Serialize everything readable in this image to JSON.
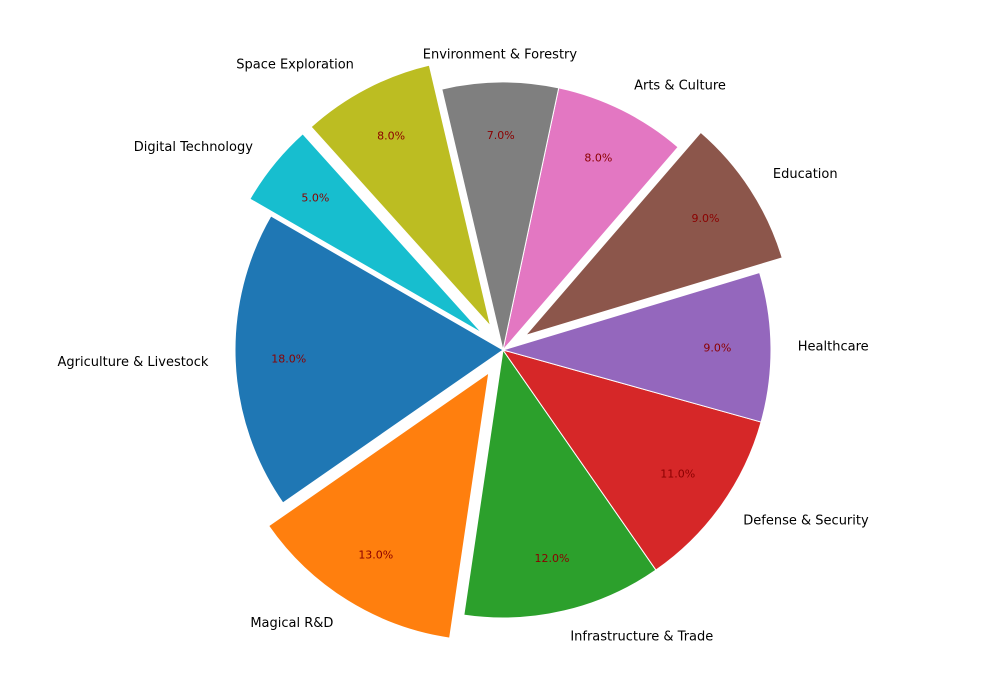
{
  "chart_data": {
    "type": "pie",
    "title": "",
    "start_angle_deg": 150,
    "direction": "counterclockwise",
    "slices": [
      {
        "label": "Agriculture & Livestock",
        "value": 18,
        "pct_label": "18.0%",
        "color": "#1f77b4",
        "exploded": false
      },
      {
        "label": "Magical R&D",
        "value": 13,
        "pct_label": "13.0%",
        "color": "#ff7f0e",
        "exploded": true
      },
      {
        "label": "Infrastructure & Trade",
        "value": 12,
        "pct_label": "12.0%",
        "color": "#2ca02c",
        "exploded": false
      },
      {
        "label": "Defense & Security",
        "value": 11,
        "pct_label": "11.0%",
        "color": "#d62728",
        "exploded": false
      },
      {
        "label": "Healthcare",
        "value": 9,
        "pct_label": "9.0%",
        "color": "#9467bd",
        "exploded": false
      },
      {
        "label": "Education",
        "value": 9,
        "pct_label": "9.0%",
        "color": "#8c564b",
        "exploded": true
      },
      {
        "label": "Arts & Culture",
        "value": 8,
        "pct_label": "8.0%",
        "color": "#e377c2",
        "exploded": false
      },
      {
        "label": "Environment & Forestry",
        "value": 7,
        "pct_label": "7.0%",
        "color": "#7f7f7f",
        "exploded": false
      },
      {
        "label": "Space Exploration",
        "value": 8,
        "pct_label": "8.0%",
        "color": "#bcbd22",
        "exploded": true
      },
      {
        "label": "Digital Technology",
        "value": 5,
        "pct_label": "5.0%",
        "color": "#17becf",
        "exploded": true
      }
    ]
  }
}
